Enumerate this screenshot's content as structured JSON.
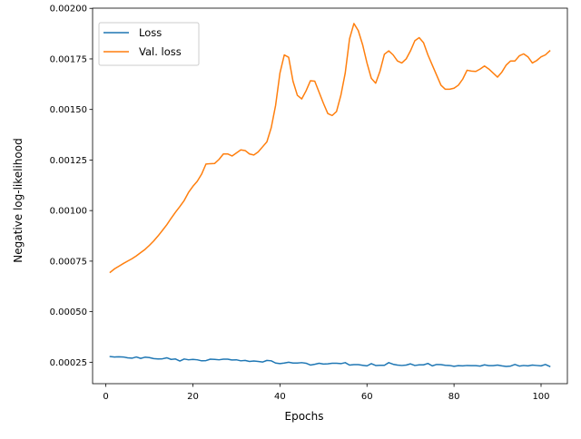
{
  "chart_data": {
    "type": "line",
    "title": "",
    "xlabel": "Epochs",
    "ylabel": "Negative log-likelihood",
    "xlim": [
      -3.05,
      106.05
    ],
    "ylim": [
      0.000144,
      0.002001
    ],
    "x_ticks": [
      0,
      20,
      40,
      60,
      80,
      100
    ],
    "x_tick_labels": [
      "0",
      "20",
      "40",
      "60",
      "80",
      "100"
    ],
    "y_ticks": [
      0.00025,
      0.0005,
      0.00075,
      0.001,
      0.00125,
      0.0015,
      0.00175,
      0.002
    ],
    "y_tick_labels": [
      "0.00025",
      "0.00050",
      "0.00075",
      "0.00100",
      "0.00125",
      "0.00150",
      "0.00175",
      "0.00200"
    ],
    "grid": false,
    "legend": {
      "position": "upper-left",
      "entries": [
        "Loss",
        "Val. loss"
      ]
    },
    "x": [
      1,
      2,
      3,
      4,
      5,
      6,
      7,
      8,
      9,
      10,
      11,
      12,
      13,
      14,
      15,
      16,
      17,
      18,
      19,
      20,
      21,
      22,
      23,
      24,
      25,
      26,
      27,
      28,
      29,
      30,
      31,
      32,
      33,
      34,
      35,
      36,
      37,
      38,
      39,
      40,
      41,
      42,
      43,
      44,
      45,
      46,
      47,
      48,
      49,
      50,
      51,
      52,
      53,
      54,
      55,
      56,
      57,
      58,
      59,
      60,
      61,
      62,
      63,
      64,
      65,
      66,
      67,
      68,
      69,
      70,
      71,
      72,
      73,
      74,
      75,
      76,
      77,
      78,
      79,
      80,
      81,
      82,
      83,
      84,
      85,
      86,
      87,
      88,
      89,
      90,
      91,
      92,
      93,
      94,
      95,
      96,
      97,
      98,
      99,
      100,
      101,
      102
    ],
    "series": [
      {
        "name": "Loss",
        "color": "#1f77b4",
        "values": [
          0.000278,
          0.000276,
          0.000277,
          0.000276,
          0.000272,
          0.00027,
          0.000276,
          0.000269,
          0.000275,
          0.000273,
          0.000268,
          0.000266,
          0.000267,
          0.000272,
          0.000264,
          0.000266,
          0.000256,
          0.000266,
          0.000262,
          0.000264,
          0.000262,
          0.000257,
          0.000258,
          0.000265,
          0.000264,
          0.000262,
          0.000265,
          0.000265,
          0.000261,
          0.000262,
          0.000257,
          0.000259,
          0.000254,
          0.000256,
          0.000254,
          0.000251,
          0.000259,
          0.000257,
          0.000246,
          0.000243,
          0.000246,
          0.00025,
          0.000246,
          0.000246,
          0.000248,
          0.000245,
          0.000236,
          0.00024,
          0.000245,
          0.000241,
          0.000242,
          0.000245,
          0.000245,
          0.000243,
          0.000248,
          0.000236,
          0.000238,
          0.000238,
          0.000235,
          0.000232,
          0.000243,
          0.000234,
          0.000235,
          0.000235,
          0.000248,
          0.00024,
          0.000236,
          0.000234,
          0.000236,
          0.000242,
          0.000234,
          0.000237,
          0.000237,
          0.000244,
          0.000232,
          0.000239,
          0.000238,
          0.000235,
          0.000234,
          0.00023,
          0.000233,
          0.000232,
          0.000234,
          0.000233,
          0.000233,
          0.000231,
          0.000237,
          0.000233,
          0.000233,
          0.000236,
          0.000232,
          0.000229,
          0.000231,
          0.000239,
          0.000231,
          0.000234,
          0.000232,
          0.000236,
          0.000234,
          0.000232,
          0.000239,
          0.000229
        ]
      },
      {
        "name": "Val. loss",
        "color": "#ff7f0e",
        "values": [
          0.000695,
          0.000712,
          0.000725,
          0.000738,
          0.00075,
          0.000762,
          0.000776,
          0.000792,
          0.000808,
          0.000828,
          0.00085,
          0.000875,
          0.000902,
          0.00093,
          0.000962,
          0.000992,
          0.00102,
          0.00105,
          0.00109,
          0.00112,
          0.001145,
          0.00118,
          0.00123,
          0.001232,
          0.001233,
          0.001253,
          0.00128,
          0.00128,
          0.00127,
          0.001285,
          0.0013,
          0.001297,
          0.00128,
          0.001275,
          0.00129,
          0.001315,
          0.00134,
          0.00141,
          0.00152,
          0.00168,
          0.00177,
          0.001758,
          0.00164,
          0.00157,
          0.001552,
          0.001592,
          0.001642,
          0.00164,
          0.001585,
          0.00153,
          0.00148,
          0.00147,
          0.00149,
          0.00157,
          0.00168,
          0.00185,
          0.001925,
          0.00189,
          0.00182,
          0.00173,
          0.001654,
          0.00163,
          0.00169,
          0.001773,
          0.00179,
          0.00177,
          0.00174,
          0.00173,
          0.00175,
          0.00179,
          0.00184,
          0.001855,
          0.00183,
          0.00177,
          0.00172,
          0.00167,
          0.00162,
          0.0016,
          0.0016,
          0.001605,
          0.00162,
          0.00165,
          0.001694,
          0.00169,
          0.001688,
          0.0017,
          0.001715,
          0.0017,
          0.00168,
          0.00166,
          0.001685,
          0.00172,
          0.00174,
          0.00174,
          0.001765,
          0.001775,
          0.00176,
          0.00173,
          0.001742,
          0.00176,
          0.00177,
          0.00179
        ]
      }
    ]
  }
}
